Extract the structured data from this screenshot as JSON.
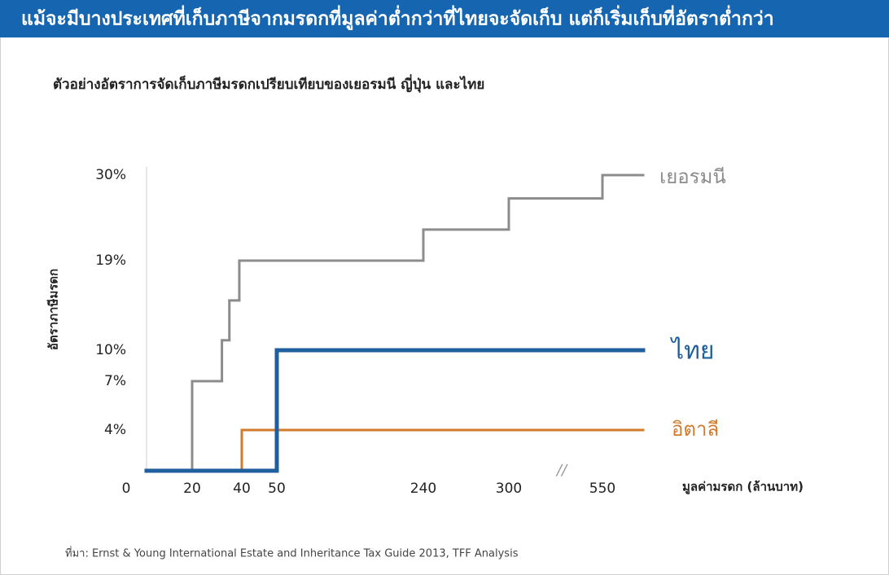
{
  "header": {
    "title": "แม้จะมีบางประเทศที่เก็บภาษีจากมรดกที่มูลค่าต่ำกว่าที่ไทยจะจัดเก็บ แต่ก็เริ่มเก็บที่อัตราต่ำกว่า"
  },
  "chart_data": {
    "type": "step",
    "title": "ตัวอย่างอัตราการจัดเก็บภาษีมรดกเปรียบเทียบของเยอรมนี ญี่ปุ่น และไทย",
    "y_label": "อัตราภาษีมรดก",
    "x_label": "มูลค่ามรดก (ล้านบาท)",
    "source": "ที่มา: Ernst & Young International Estate and Inheritance Tax Guide 2013, TFF Analysis",
    "xticks": [
      0,
      20,
      40,
      50,
      240,
      300,
      550
    ],
    "ylim": [
      0,
      30
    ],
    "yticks": [
      {
        "value": 4,
        "label": "4%"
      },
      {
        "value": 7,
        "label": "7%"
      },
      {
        "value": 10,
        "label": "10%"
      },
      {
        "value": 19,
        "label": "19%"
      },
      {
        "value": 30,
        "label": "30%"
      }
    ],
    "series": [
      {
        "name": "เยอรมนี",
        "color": "#8c8c8c",
        "x": [
          0,
          20,
          32,
          35,
          39,
          240,
          300,
          550
        ],
        "values": [
          0,
          7,
          11,
          15,
          19,
          23,
          27,
          30
        ]
      },
      {
        "name": "อิตาลี",
        "color": "#d27b2c",
        "x": [
          0,
          40
        ],
        "values": [
          0,
          4
        ]
      },
      {
        "name": "ไทย",
        "color": "#1f5f9e",
        "x": [
          0,
          50
        ],
        "values": [
          0,
          10
        ]
      }
    ]
  }
}
